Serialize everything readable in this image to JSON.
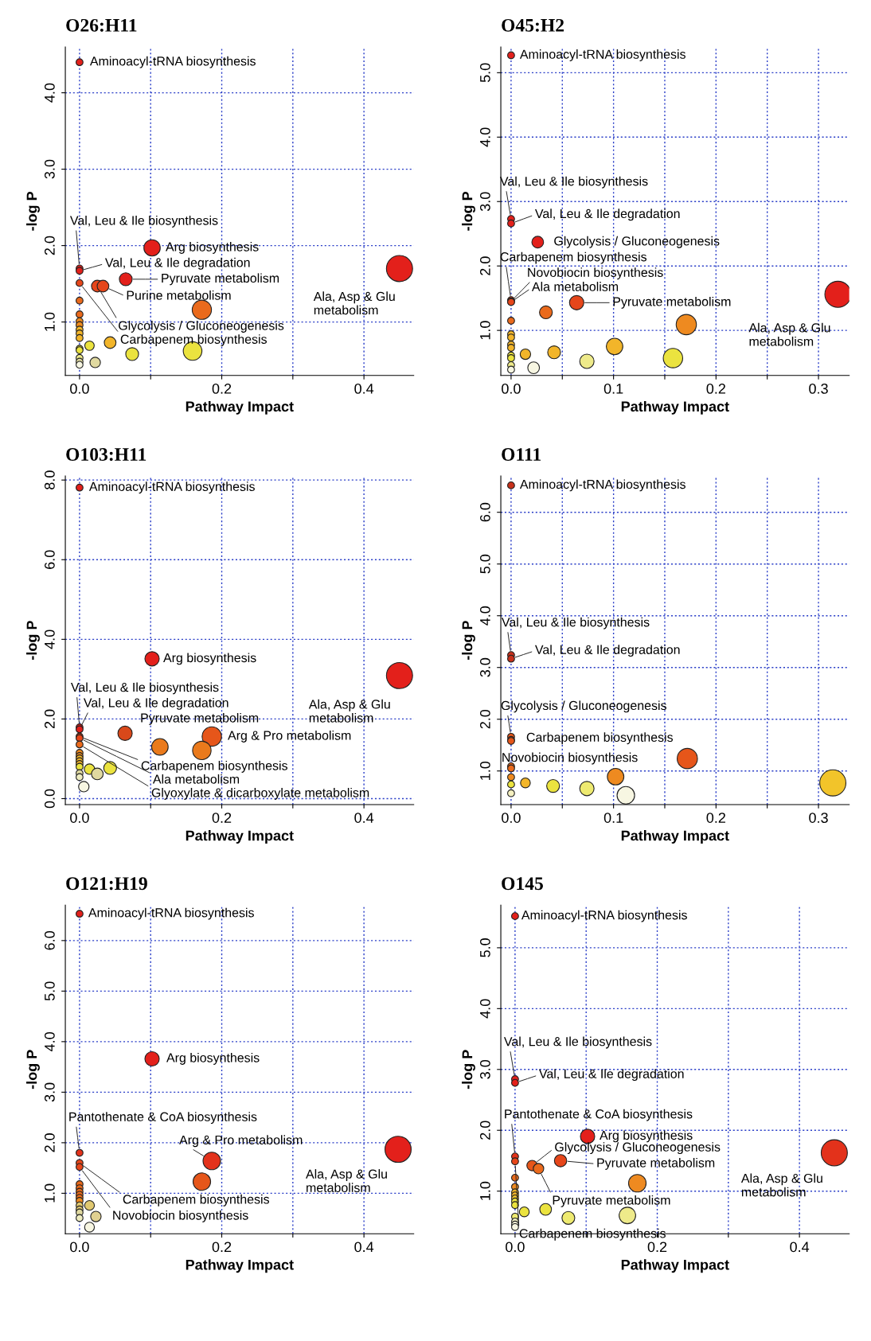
{
  "chart_data": [
    {
      "type": "bubble",
      "title": "O26:H11",
      "xlabel": "Pathway Impact",
      "ylabel": "-log P",
      "grid": true,
      "x": [
        0,
        0.102,
        0.45,
        0,
        0,
        0.065,
        0.025,
        0.033,
        0,
        0.172,
        0,
        0,
        0,
        0,
        0,
        0,
        0,
        0,
        0,
        0,
        0,
        0,
        0.014,
        0.043,
        0.074,
        0.159,
        0.022
      ],
      "values": [
        4.4,
        1.97,
        1.7,
        1.7,
        1.67,
        1.56,
        1.47,
        1.47,
        1.51,
        1.16,
        1.28,
        1.1,
        1.01,
        0.96,
        0.9,
        0.85,
        0.79,
        0.65,
        0.63,
        0.53,
        0.48,
        0.44,
        0.69,
        0.73,
        0.58,
        0.62,
        0.47
      ],
      "sizes": [
        0.07,
        0.39,
        1,
        0.07,
        0.07,
        0.24,
        0.2,
        0.2,
        0.07,
        0.54,
        0.07,
        0.07,
        0.07,
        0.07,
        0.07,
        0.07,
        0.07,
        0.07,
        0.07,
        0.07,
        0.07,
        0.07,
        0.13,
        0.2,
        0.24,
        0.51,
        0.16
      ],
      "colors": [
        "#e3201b",
        "#e3201b",
        "#e3201b",
        "#e3201b",
        "#e3201b",
        "#e3201b",
        "#e6461a",
        "#e6461a",
        "#e6461a",
        "#ea6a1c",
        "#ea6a1c",
        "#ea6a1c",
        "#ee8a20",
        "#ee8a20",
        "#f2b52a",
        "#f2b52a",
        "#f2b52a",
        "#ebe33f",
        "#ebe33f",
        "#eeea8a",
        "#e0d9a0",
        "#f7f6e2",
        "#ebe33f",
        "#f2b52a",
        "#ebe33f",
        "#ebe33f",
        "#e0d9a0"
      ],
      "annotations": [
        {
          "text": "Aminoacyl-tRNA biosynthesis",
          "x": 0,
          "y": 4.4
        },
        {
          "text": "Arg biosynthesis",
          "x": 0.102,
          "y": 1.97
        },
        {
          "text": "Ala, Asp & Glu\nmetabolism",
          "x": 0.45,
          "y": 1.7
        },
        {
          "text": "Val, Leu & Ile biosynthesis",
          "x": 0,
          "y": 1.7
        },
        {
          "text": "Val, Leu & Ile degradation",
          "x": 0,
          "y": 1.67
        },
        {
          "text": "Pyruvate metabolism",
          "x": 0.065,
          "y": 1.56
        },
        {
          "text": "Purine metabolism",
          "x": 0.033,
          "y": 1.47
        },
        {
          "text": "Glycolysis / Gluconeogenesis",
          "x": 0.025,
          "y": 1.47
        },
        {
          "text": "Carbapenem biosynthesis",
          "x": 0,
          "y": 1.51
        }
      ],
      "xlim": [
        -0.02,
        0.47
      ],
      "ylim": [
        0.3,
        4.6
      ],
      "xticks": [
        {
          "value": 0,
          "label": "0.0"
        },
        {
          "value": 0.1,
          "label": null
        },
        {
          "value": 0.2,
          "label": "0.2"
        },
        {
          "value": 0.3,
          "label": null
        },
        {
          "value": 0.4,
          "label": "0.4"
        }
      ],
      "yticks": [
        {
          "value": 1,
          "label": "1.0"
        },
        {
          "value": 2,
          "label": "2.0"
        },
        {
          "value": 3,
          "label": "3.0"
        },
        {
          "value": 4,
          "label": "4.0"
        }
      ]
    },
    {
      "type": "bubble",
      "title": "O45:H2",
      "xlabel": "Pathway Impact",
      "ylabel": "-log P",
      "grid": true,
      "x": [
        0,
        0,
        0,
        0.026,
        0,
        0,
        0,
        0.064,
        0.034,
        0,
        0.171,
        0.319,
        0,
        0,
        0,
        0,
        0,
        0,
        0,
        0,
        0.014,
        0.042,
        0.074,
        0.101,
        0.158,
        0.022
      ],
      "values": [
        5.27,
        2.73,
        2.66,
        2.37,
        1.47,
        1.45,
        1.44,
        1.43,
        1.28,
        1.15,
        1.09,
        1.56,
        0.94,
        0.89,
        0.78,
        0.73,
        0.61,
        0.57,
        0.46,
        0.39,
        0.63,
        0.66,
        0.52,
        0.75,
        0.57,
        0.42
      ],
      "sizes": [
        0.07,
        0.07,
        0.07,
        0.2,
        0.07,
        0.07,
        0.07,
        0.3,
        0.24,
        0.07,
        0.6,
        1,
        0.07,
        0.07,
        0.07,
        0.07,
        0.07,
        0.07,
        0.07,
        0.07,
        0.16,
        0.24,
        0.3,
        0.4,
        0.55,
        0.2
      ],
      "colors": [
        "#e3201b",
        "#e3201b",
        "#e3201b",
        "#e3201b",
        "#e6461a",
        "#e6461a",
        "#e6461a",
        "#e6461a",
        "#ea6a1c",
        "#ea6a1c",
        "#ee8a20",
        "#e3201b",
        "#f2b52a",
        "#f2b52a",
        "#f2b52a",
        "#f2b52a",
        "#ebe33f",
        "#ebe33f",
        "#eeea8a",
        "#f7f6e2",
        "#f2b52a",
        "#f2b52a",
        "#eeea8a",
        "#f2b52a",
        "#ebe33f",
        "#f7f6e2"
      ],
      "annotations": [
        {
          "text": "Aminoacyl-tRNA biosynthesis",
          "x": 0,
          "y": 5.27
        },
        {
          "text": "Val, Leu & Ile biosynthesis",
          "x": 0,
          "y": 2.73
        },
        {
          "text": "Val, Leu & Ile degradation",
          "x": 0,
          "y": 2.66
        },
        {
          "text": "Glycolysis / Gluconeogenesis",
          "x": 0.026,
          "y": 2.37
        },
        {
          "text": "Carbapenem biosynthesis",
          "x": 0,
          "y": 1.47
        },
        {
          "text": "Novobiocin biosynthesis",
          "x": 0,
          "y": 1.45
        },
        {
          "text": "Ala metabolism",
          "x": 0,
          "y": 1.44
        },
        {
          "text": "Pyruvate metabolism",
          "x": 0.064,
          "y": 1.43
        },
        {
          "text": "Ala, Asp & Glu\nmetabolism",
          "x": 0.319,
          "y": 1.56
        }
      ],
      "xlim": [
        -0.01,
        0.33
      ],
      "ylim": [
        0.3,
        5.4
      ],
      "xticks": [
        {
          "value": 0,
          "label": "0.0"
        },
        {
          "value": 0.05,
          "label": null
        },
        {
          "value": 0.1,
          "label": "0.1"
        },
        {
          "value": 0.15,
          "label": null
        },
        {
          "value": 0.2,
          "label": "0.2"
        },
        {
          "value": 0.25,
          "label": null
        },
        {
          "value": 0.3,
          "label": "0.3"
        }
      ],
      "yticks": [
        {
          "value": 1,
          "label": "1.0"
        },
        {
          "value": 2,
          "label": "2.0"
        },
        {
          "value": 3,
          "label": "3.0"
        },
        {
          "value": 4,
          "label": "4.0"
        },
        {
          "value": 5,
          "label": "5.0"
        }
      ]
    },
    {
      "type": "bubble",
      "title": "O103:H11",
      "xlabel": "Pathway Impact",
      "ylabel": "-log P",
      "grid": true,
      "x": [
        0,
        0.102,
        0.45,
        0,
        0,
        0.064,
        0.186,
        0.113,
        0.172,
        0,
        0,
        0,
        0,
        0,
        0,
        0,
        0,
        0,
        0,
        0,
        0.014,
        0.025,
        0.043,
        0.006
      ],
      "values": [
        7.81,
        3.51,
        3.09,
        1.79,
        1.74,
        1.64,
        1.56,
        1.3,
        1.21,
        1.56,
        1.52,
        1.36,
        1.15,
        1.07,
        1.01,
        0.94,
        0.87,
        0.8,
        0.64,
        0.54,
        0.74,
        0.62,
        0.77,
        0.3
      ],
      "sizes": [
        0.07,
        0.3,
        1,
        0.07,
        0.07,
        0.3,
        0.55,
        0.4,
        0.5,
        0.07,
        0.07,
        0.07,
        0.07,
        0.07,
        0.07,
        0.07,
        0.07,
        0.07,
        0.07,
        0.07,
        0.16,
        0.2,
        0.24,
        0.16
      ],
      "colors": [
        "#e3201b",
        "#e3201b",
        "#e3201b",
        "#e3201b",
        "#e3201b",
        "#d9481a",
        "#e6561a",
        "#ea7a1c",
        "#ea7a1c",
        "#e6461a",
        "#e6461a",
        "#ea6a1c",
        "#ee8a20",
        "#ee8a20",
        "#f2b52a",
        "#f2b52a",
        "#f2b52a",
        "#ebe33f",
        "#e0d9a0",
        "#eeecc0",
        "#ebe33f",
        "#e0d9a0",
        "#ebe33f",
        "#f7f6e2"
      ],
      "annotations": [
        {
          "text": "Aminoacyl-tRNA biosynthesis",
          "x": 0,
          "y": 7.81
        },
        {
          "text": "Arg biosynthesis",
          "x": 0.102,
          "y": 3.51
        },
        {
          "text": "Ala, Asp & Glu\nmetabolism",
          "x": 0.45,
          "y": 3.09
        },
        {
          "text": "Val, Leu & Ile biosynthesis",
          "x": 0,
          "y": 1.79
        },
        {
          "text": "Val, Leu & Ile degradation",
          "x": 0,
          "y": 1.74
        },
        {
          "text": "Pyruvate metabolism",
          "x": 0.064,
          "y": 1.64
        },
        {
          "text": "Arg & Pro metabolism",
          "x": 0.186,
          "y": 1.56
        },
        {
          "text": "Carbapenem biosynthesis",
          "x": 0,
          "y": 1.56
        },
        {
          "text": "Ala metabolism",
          "x": 0,
          "y": 1.52
        },
        {
          "text": "Glyoxylate & dicarboxylate metabolism",
          "x": 0,
          "y": 1.36
        }
      ],
      "xlim": [
        -0.02,
        0.47
      ],
      "ylim": [
        -0.15,
        8.1
      ],
      "xticks": [
        {
          "value": 0,
          "label": "0.0"
        },
        {
          "value": 0.1,
          "label": null
        },
        {
          "value": 0.2,
          "label": "0.2"
        },
        {
          "value": 0.3,
          "label": null
        },
        {
          "value": 0.4,
          "label": "0.4"
        }
      ],
      "yticks": [
        {
          "value": 0,
          "label": "0.0"
        },
        {
          "value": 2,
          "label": "2.0"
        },
        {
          "value": 4,
          "label": "4.0"
        },
        {
          "value": 6,
          "label": "6.0"
        },
        {
          "value": 8,
          "label": "8.0"
        }
      ]
    },
    {
      "type": "bubble",
      "title": "O111",
      "xlabel": "Pathway Impact",
      "ylabel": "-log P",
      "grid": true,
      "x": [
        0,
        0,
        0,
        0,
        0,
        0,
        0.172,
        0,
        0,
        0,
        0,
        0,
        0.014,
        0.041,
        0.074,
        0.102,
        0.112,
        0.314
      ],
      "values": [
        6.52,
        3.24,
        3.17,
        1.66,
        1.6,
        1.58,
        1.24,
        1.09,
        1.05,
        0.88,
        0.74,
        0.57,
        0.77,
        0.71,
        0.66,
        0.89,
        0.53,
        0.77
      ],
      "sizes": [
        0.07,
        0.07,
        0.07,
        0.07,
        0.07,
        0.07,
        0.6,
        0.07,
        0.07,
        0.07,
        0.07,
        0.07,
        0.14,
        0.24,
        0.3,
        0.4,
        0.45,
        1
      ],
      "colors": [
        "#c8301a",
        "#c8301a",
        "#c8301a",
        "#e6561a",
        "#e6561a",
        "#e6561a",
        "#e6561a",
        "#ea6a1c",
        "#ea6a1c",
        "#ee8a20",
        "#ebe33f",
        "#f5f0c0",
        "#f2b52a",
        "#ebe33f",
        "#eeea70",
        "#ee8a20",
        "#f7f6e2",
        "#f2c42a"
      ],
      "annotations": [
        {
          "text": "Aminoacyl-tRNA biosynthesis",
          "x": 0,
          "y": 6.52
        },
        {
          "text": "Val, Leu & Ile biosynthesis",
          "x": 0,
          "y": 3.24
        },
        {
          "text": "Val, Leu & Ile degradation",
          "x": 0,
          "y": 3.17
        },
        {
          "text": "Glycolysis / Gluconeogenesis",
          "x": 0,
          "y": 1.66
        },
        {
          "text": "Carbapenem biosynthesis",
          "x": 0,
          "y": 1.6
        },
        {
          "text": "Novobiocin biosynthesis",
          "x": 0,
          "y": 1.58
        }
      ],
      "xlim": [
        -0.01,
        0.33
      ],
      "ylim": [
        0.35,
        6.7
      ],
      "xticks": [
        {
          "value": 0,
          "label": "0.0"
        },
        {
          "value": 0.05,
          "label": null
        },
        {
          "value": 0.1,
          "label": "0.1"
        },
        {
          "value": 0.15,
          "label": null
        },
        {
          "value": 0.2,
          "label": "0.2"
        },
        {
          "value": 0.25,
          "label": null
        },
        {
          "value": 0.3,
          "label": "0.3"
        }
      ],
      "yticks": [
        {
          "value": 1,
          "label": "1.0"
        },
        {
          "value": 2,
          "label": "2.0"
        },
        {
          "value": 3,
          "label": "3.0"
        },
        {
          "value": 4,
          "label": "4.0"
        },
        {
          "value": 5,
          "label": "5.0"
        },
        {
          "value": 6,
          "label": "6.0"
        }
      ]
    },
    {
      "type": "bubble",
      "title": "O121:H19",
      "xlabel": "Pathway Impact",
      "ylabel": "-log P",
      "grid": true,
      "x": [
        0,
        0.102,
        0.448,
        0.186,
        0.172,
        0,
        0,
        0,
        0,
        0,
        0,
        0,
        0,
        0,
        0,
        0,
        0,
        0,
        0.014,
        0.023,
        0.014
      ],
      "values": [
        6.53,
        3.66,
        1.87,
        1.64,
        1.23,
        1.8,
        1.6,
        1.52,
        1.18,
        1.1,
        1.03,
        0.97,
        0.91,
        0.85,
        0.76,
        0.68,
        0.62,
        0.51,
        0.76,
        0.54,
        0.33
      ],
      "sizes": [
        0.07,
        0.3,
        1,
        0.45,
        0.45,
        0.07,
        0.07,
        0.07,
        0.07,
        0.07,
        0.07,
        0.07,
        0.07,
        0.07,
        0.07,
        0.07,
        0.07,
        0.07,
        0.14,
        0.16,
        0.14
      ],
      "colors": [
        "#e3201b",
        "#e3201b",
        "#e3201b",
        "#e3321b",
        "#e6561a",
        "#e3321b",
        "#e6461a",
        "#e6461a",
        "#ea6a1c",
        "#ea6a1c",
        "#ea6a1c",
        "#ea6a1c",
        "#ea6a1c",
        "#ee8a20",
        "#e0c870",
        "#e0c870",
        "#e0d9a0",
        "#eeecc0",
        "#e0c870",
        "#e0d090",
        "#f7f6e2"
      ],
      "annotations": [
        {
          "text": "Aminoacyl-tRNA biosynthesis",
          "x": 0,
          "y": 6.53
        },
        {
          "text": "Arg biosynthesis",
          "x": 0.102,
          "y": 3.66
        },
        {
          "text": "Ala, Asp & Glu\nmetabolism",
          "x": 0.448,
          "y": 1.87
        },
        {
          "text": "Arg & Pro metabolism",
          "x": 0.186,
          "y": 1.64
        },
        {
          "text": "Pantothenate & CoA biosynthesis",
          "x": 0,
          "y": 1.8
        },
        {
          "text": "Carbapenem biosynthesis",
          "x": 0,
          "y": 1.6
        },
        {
          "text": "Novobiocin biosynthesis",
          "x": 0,
          "y": 1.52
        }
      ],
      "xlim": [
        -0.02,
        0.47
      ],
      "ylim": [
        0.2,
        6.7
      ],
      "xticks": [
        {
          "value": 0,
          "label": "0.0"
        },
        {
          "value": 0.1,
          "label": null
        },
        {
          "value": 0.2,
          "label": "0.2"
        },
        {
          "value": 0.3,
          "label": null
        },
        {
          "value": 0.4,
          "label": "0.4"
        }
      ],
      "yticks": [
        {
          "value": 1,
          "label": "1.0"
        },
        {
          "value": 2,
          "label": "2.0"
        },
        {
          "value": 3,
          "label": "3.0"
        },
        {
          "value": 4,
          "label": "4.0"
        },
        {
          "value": 5,
          "label": "5.0"
        },
        {
          "value": 6,
          "label": "6.0"
        }
      ]
    },
    {
      "type": "bubble",
      "title": "O145",
      "xlabel": "Pathway Impact",
      "ylabel": "-log P",
      "grid": true,
      "x": [
        0,
        0,
        0,
        0.102,
        0.449,
        0,
        0,
        0.024,
        0.033,
        0.064,
        0.172,
        0,
        0,
        0,
        0,
        0,
        0,
        0,
        0,
        0,
        0,
        0,
        0.013,
        0.043,
        0.075,
        0.158
      ],
      "values": [
        5.52,
        2.84,
        2.78,
        1.9,
        1.63,
        1.57,
        1.49,
        1.42,
        1.37,
        1.5,
        1.13,
        1.22,
        1.07,
        0.98,
        0.93,
        0.88,
        0.83,
        0.77,
        0.58,
        0.5,
        0.45,
        0.41,
        0.66,
        0.7,
        0.56,
        0.6
      ],
      "sizes": [
        0.07,
        0.07,
        0.07,
        0.3,
        1,
        0.07,
        0.07,
        0.16,
        0.16,
        0.22,
        0.45,
        0.07,
        0.07,
        0.07,
        0.07,
        0.07,
        0.07,
        0.07,
        0.07,
        0.07,
        0.07,
        0.07,
        0.14,
        0.2,
        0.24,
        0.4
      ],
      "colors": [
        "#e3201b",
        "#e3201b",
        "#e3201b",
        "#e3201b",
        "#e3321b",
        "#e3321b",
        "#e6461a",
        "#e6561a",
        "#ea6a1c",
        "#e6461a",
        "#ee8a20",
        "#ea6a1c",
        "#ee8a20",
        "#f2b52a",
        "#f2b52a",
        "#f2c42a",
        "#ebe33f",
        "#ebe33f",
        "#eeea70",
        "#eeecc0",
        "#f5f3d8",
        "#f7f6e2",
        "#ebe33f",
        "#ebe33f",
        "#eeea70",
        "#eeea8a"
      ],
      "annotations": [
        {
          "text": "Aminoacyl-tRNA biosynthesis",
          "x": 0,
          "y": 5.52
        },
        {
          "text": "Val, Leu & Ile biosynthesis",
          "x": 0,
          "y": 2.84
        },
        {
          "text": "Val, Leu & Ile degradation",
          "x": 0,
          "y": 2.78
        },
        {
          "text": "Pantothenate & CoA biosynthesis",
          "x": 0,
          "y": 1.57
        },
        {
          "text": "Arg biosynthesis",
          "x": 0.102,
          "y": 1.9
        },
        {
          "text": "Ala, Asp & Glu\nmetabolism",
          "x": 0.449,
          "y": 1.63
        },
        {
          "text": "Glycolysis / Gluconeogenesis",
          "x": 0.024,
          "y": 1.42
        },
        {
          "text": "Pyruvate metabolism",
          "x": 0.064,
          "y": 1.5
        },
        {
          "text": "Pyruvate metabolism",
          "x": 0.033,
          "y": 1.37
        },
        {
          "text": "Carbapenem biosynthesis",
          "x": 0,
          "y": 1.49
        }
      ],
      "xlim": [
        -0.02,
        0.47
      ],
      "ylim": [
        0.3,
        5.7
      ],
      "xticks": [
        {
          "value": 0,
          "label": "0.0"
        },
        {
          "value": 0.1,
          "label": null
        },
        {
          "value": 0.2,
          "label": "0.2"
        },
        {
          "value": 0.3,
          "label": null
        },
        {
          "value": 0.4,
          "label": "0.4"
        }
      ],
      "yticks": [
        {
          "value": 1,
          "label": "1.0"
        },
        {
          "value": 2,
          "label": "2.0"
        },
        {
          "value": 3,
          "label": "3.0"
        },
        {
          "value": 4,
          "label": "4.0"
        },
        {
          "value": 5,
          "label": "5.0"
        }
      ]
    }
  ]
}
